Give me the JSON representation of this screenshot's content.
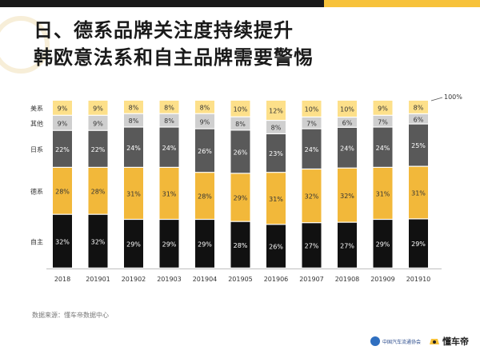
{
  "title": {
    "line1": "日、德系品牌关注度持续提升",
    "line2": "韩欧意法系和自主品牌需要警惕"
  },
  "source_note": "数据来源：懂车帝数据中心",
  "footer": {
    "org_name": "中国汽车流通协会",
    "brand_name": "懂车帝"
  },
  "colors": {
    "自主": "#111111",
    "德系": "#f2b83a",
    "日系": "#595959",
    "其他": "#cfcfcf",
    "美系": "#fde08a"
  },
  "chart_data": {
    "type": "bar",
    "stacked": true,
    "categories": [
      "2018",
      "201901",
      "201902",
      "201903",
      "201904",
      "201905",
      "201906",
      "201907",
      "201908",
      "201909",
      "201910"
    ],
    "series": [
      {
        "name": "自主",
        "values": [
          32,
          32,
          29,
          29,
          29,
          28,
          26,
          27,
          27,
          29,
          29
        ]
      },
      {
        "name": "德系",
        "values": [
          28,
          28,
          31,
          31,
          28,
          29,
          31,
          32,
          32,
          31,
          31
        ]
      },
      {
        "name": "日系",
        "values": [
          22,
          22,
          24,
          24,
          26,
          26,
          23,
          24,
          24,
          24,
          25
        ]
      },
      {
        "name": "其他",
        "values": [
          9,
          9,
          8,
          8,
          9,
          8,
          8,
          7,
          6,
          7,
          6
        ]
      },
      {
        "name": "美系",
        "values": [
          9,
          9,
          8,
          8,
          8,
          10,
          12,
          10,
          10,
          9,
          8
        ]
      }
    ],
    "value_suffix": "%",
    "total_label": "100%",
    "ylim": [
      0,
      100
    ]
  }
}
